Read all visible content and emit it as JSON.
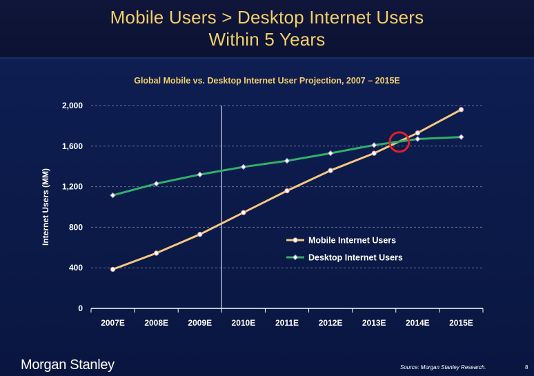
{
  "slide": {
    "title_line1": "Mobile Users > Desktop Internet Users",
    "title_line2": "Within 5 Years",
    "logo": "Morgan Stanley",
    "source": "Source: Morgan Stanley Research.",
    "page_number": "8"
  },
  "colors": {
    "mobile": "#f5c77e",
    "desktop": "#2fb06a",
    "highlight": "#e0202a",
    "title": "#f2cf6a"
  },
  "chart_data": {
    "type": "line",
    "title": "Global Mobile vs. Desktop Internet User Projection, 2007 – 2015E",
    "ylabel": "Internet Users (MM)",
    "xlabel": "",
    "categories": [
      "2007E",
      "2008E",
      "2009E",
      "2010E",
      "2011E",
      "2012E",
      "2013E",
      "2014E",
      "2015E"
    ],
    "ylim": [
      0,
      2000
    ],
    "yticks": [
      0,
      400,
      800,
      1200,
      1600,
      2000
    ],
    "ytick_labels": [
      "0",
      "400",
      "800",
      "1,200",
      "1,600",
      "2,000"
    ],
    "grid": "horizontal dashed",
    "legend_position": "center-right",
    "series": [
      {
        "name": "Mobile Internet Users",
        "color": "#f5c77e",
        "values": [
          385,
          545,
          730,
          945,
          1160,
          1360,
          1530,
          1730,
          1960
        ]
      },
      {
        "name": "Desktop Internet Users",
        "color": "#2fb06a",
        "values": [
          1115,
          1230,
          1320,
          1395,
          1455,
          1530,
          1610,
          1670,
          1690
        ]
      }
    ],
    "annotations": [
      {
        "type": "vertical-divider",
        "between": [
          "2009E",
          "2010E"
        ]
      },
      {
        "type": "circle",
        "label": "crossover",
        "x_between": [
          "2013E",
          "2014E"
        ],
        "y": 1640
      }
    ]
  }
}
